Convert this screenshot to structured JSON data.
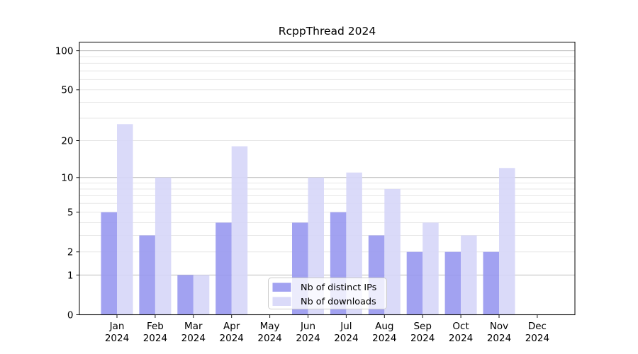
{
  "chart_data": {
    "type": "bar",
    "title": "RcppThread 2024",
    "x": {
      "months": [
        "Jan",
        "Feb",
        "Mar",
        "Apr",
        "May",
        "Jun",
        "Jul",
        "Aug",
        "Sep",
        "Oct",
        "Nov",
        "Dec"
      ],
      "year": "2024"
    },
    "series": [
      {
        "name": "Nb of distinct IPs",
        "color": "#9898f0",
        "values": [
          5,
          3,
          1,
          4,
          0,
          4,
          5,
          3,
          2,
          2,
          2,
          0
        ]
      },
      {
        "name": "Nb of downloads",
        "color": "#d6d6f8",
        "values": [
          27,
          10,
          1,
          18,
          0,
          10,
          11,
          8,
          4,
          3,
          12,
          0
        ]
      }
    ],
    "y_axis": {
      "scale": "log1p",
      "tick_labels": [
        0,
        1,
        2,
        5,
        10,
        20,
        50,
        100
      ],
      "major_grid": [
        1,
        10,
        100
      ],
      "minor_grid": [
        2,
        3,
        4,
        5,
        6,
        7,
        8,
        9,
        20,
        30,
        40,
        50,
        60,
        70,
        80,
        90
      ],
      "range_top": 115
    },
    "legend": {
      "position": "lower-center"
    }
  },
  "colors": {
    "grid_major": "#b9b9b9",
    "grid_minor": "#e7e7e7",
    "axis": "#1a1a1a",
    "legend_border": "#cccccc",
    "background": "#ffffff"
  }
}
